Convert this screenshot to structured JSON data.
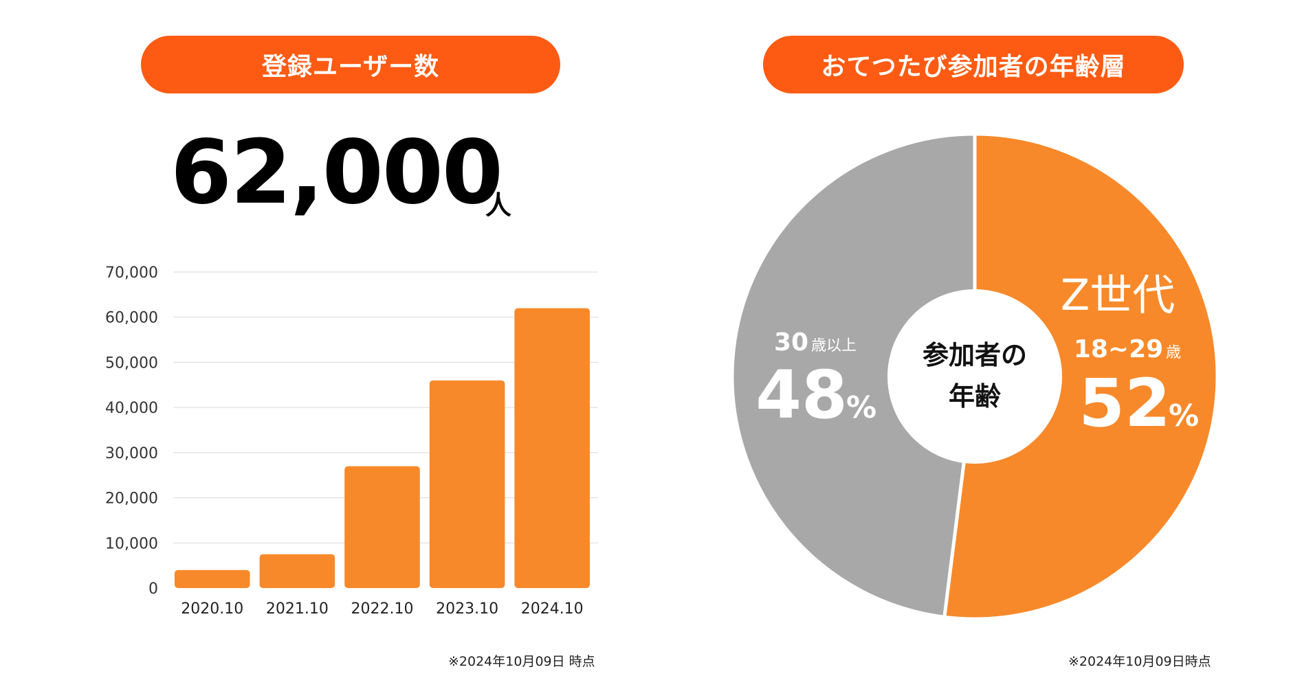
{
  "left_panel": {
    "title": "登録ユーザー数",
    "total_value": "62,000",
    "total_unit": "人",
    "footnote": "※2024年10月09日 時点"
  },
  "right_panel": {
    "title": "おてつたび参加者の年齢層",
    "footnote": "※2024年10月09日時点"
  },
  "colors": {
    "pill": "#fd5b13",
    "bar": "#f7892a",
    "pie_orange": "#f7892a",
    "pie_gray": "#a8a8a8",
    "grid": "#d9d9d9"
  },
  "chart_data": [
    {
      "type": "bar",
      "categories": [
        "2020.10",
        "2021.10",
        "2022.10",
        "2023.10",
        "2024.10"
      ],
      "values": [
        4000,
        7500,
        27000,
        46000,
        62000
      ],
      "ylim": [
        0,
        70000
      ],
      "yticks": [
        "0",
        "10,000",
        "20,000",
        "30,000",
        "40,000",
        "50,000",
        "60,000",
        "70,000"
      ],
      "ytick_values": [
        0,
        10000,
        20000,
        30000,
        40000,
        50000,
        60000,
        70000
      ],
      "grid": true
    },
    {
      "type": "pie",
      "center_label_line1": "参加者の",
      "center_label_line2": "年齢",
      "slices": [
        {
          "label": "Z世代",
          "sublabel_number": "18~29",
          "sublabel_unit": "歳",
          "value": 52,
          "value_text": "52",
          "percent_sign": "%"
        },
        {
          "label": "",
          "sublabel_number": "30",
          "sublabel_unit": "歳以上",
          "value": 48,
          "value_text": "48",
          "percent_sign": "%"
        }
      ]
    }
  ]
}
